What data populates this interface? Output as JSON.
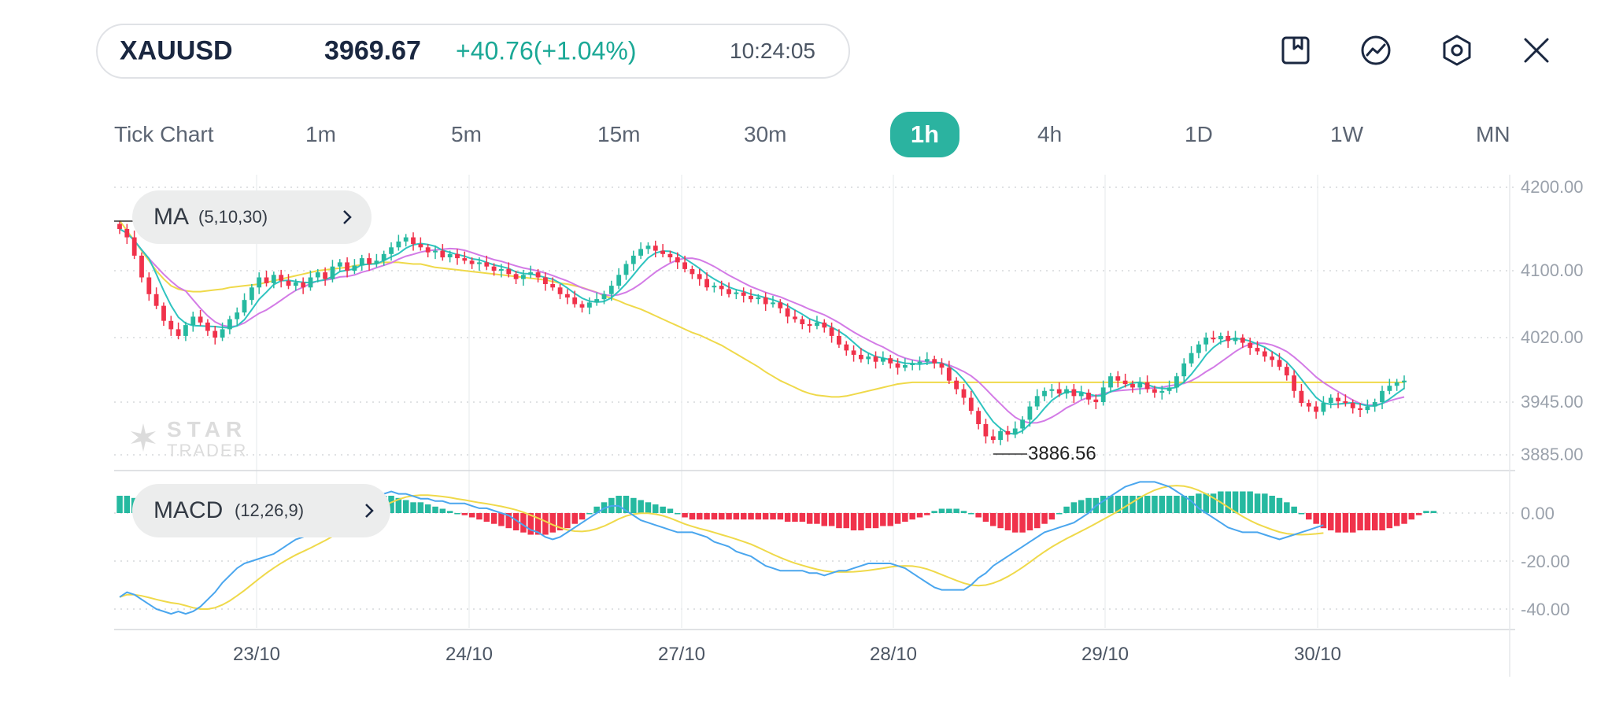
{
  "quote": {
    "symbol": "XAUUSD",
    "price": "3969.67",
    "change": "+40.76(+1.04%)",
    "time": "10:24:05",
    "price_color": "#1a2740",
    "change_color": "#1ba896"
  },
  "toolbar": {
    "icons": [
      "bookmark-icon",
      "chart-icon",
      "settings-icon",
      "close-icon"
    ]
  },
  "timeframes": {
    "items": [
      "Tick Chart",
      "1m",
      "5m",
      "15m",
      "30m",
      "1h",
      "4h",
      "1D",
      "1W",
      "MN"
    ],
    "active": "1h",
    "active_color": "#2bb3a0"
  },
  "indicators": {
    "ma": {
      "name": "MA",
      "params": "(5,10,30)"
    },
    "macd": {
      "name": "MACD",
      "params": "(12,26,9)"
    }
  },
  "watermark": {
    "line1": "STAR",
    "line2": "TRADER"
  },
  "chart_data": {
    "type": "candlestick",
    "x_tick_labels": [
      "23/10",
      "24/10",
      "27/10",
      "28/10",
      "29/10",
      "30/10"
    ],
    "price_axis_labels": [
      "4200.00",
      "4100.00",
      "4020.00",
      "3945.00",
      "3885.00"
    ],
    "macd_axis_labels": [
      "0.00",
      "-20.00",
      "-40.00"
    ],
    "low_marker": "3886.56",
    "grid": true,
    "colors": {
      "up": "#26b9a0",
      "down": "#f0324b",
      "ma5": "#2fc4c0",
      "ma10": "#d37be6",
      "ma30": "#efd94a",
      "dif": "#4aa6ee",
      "dea": "#efd94a"
    },
    "close": [
      4150,
      4140,
      4118,
      4092,
      4072,
      4058,
      4040,
      4030,
      4022,
      4035,
      4045,
      4038,
      4028,
      4020,
      4030,
      4042,
      4050,
      4065,
      4080,
      4092,
      4085,
      4095,
      4088,
      4082,
      4086,
      4080,
      4092,
      4098,
      4090,
      4105,
      4110,
      4100,
      4106,
      4115,
      4108,
      4112,
      4120,
      4128,
      4135,
      4140,
      4132,
      4128,
      4122,
      4124,
      4116,
      4120,
      4115,
      4112,
      4108,
      4110,
      4105,
      4100,
      4102,
      4096,
      4090,
      4095,
      4098,
      4092,
      4084,
      4080,
      4072,
      4068,
      4060,
      4056,
      4062,
      4066,
      4072,
      4082,
      4095,
      4108,
      4118,
      4126,
      4130,
      4124,
      4120,
      4116,
      4110,
      4102,
      4096,
      4090,
      4080,
      4082,
      4078,
      4072,
      4074,
      4070,
      4066,
      4068,
      4060,
      4062,
      4055,
      4045,
      4042,
      4036,
      4034,
      4038,
      4032,
      4022,
      4012,
      4005,
      4000,
      3995,
      3998,
      3992,
      3996,
      3990,
      3985,
      3988,
      3990,
      3992,
      3995,
      3990,
      3985,
      3970,
      3960,
      3950,
      3935,
      3920,
      3906,
      3902,
      3912,
      3908,
      3915,
      3925,
      3940,
      3952,
      3958,
      3960,
      3955,
      3960,
      3952,
      3956,
      3948,
      3945,
      3962,
      3975,
      3970,
      3966,
      3962,
      3968,
      3960,
      3956,
      3958,
      3962,
      3975,
      3990,
      4002,
      4012,
      4020,
      4018,
      4022,
      4016,
      4020,
      4014,
      4008,
      4004,
      3998,
      3994,
      3986,
      3976,
      3958,
      3944,
      3940,
      3934,
      3944,
      3950,
      3946,
      3944,
      3938,
      3936,
      3940,
      3945,
      3958,
      3964,
      3968,
      3970
    ],
    "ma30": [
      4160,
      4148,
      4136,
      4124,
      4112,
      4100,
      4090,
      4082,
      4078,
      4076,
      4075,
      4075,
      4076,
      4077,
      4078,
      4080,
      4081,
      4082,
      4083,
      4084,
      4086,
      4088,
      4090,
      4092,
      4094,
      4096,
      4098,
      4100,
      4101,
      4102,
      4103,
      4104,
      4106,
      4107,
      4108,
      4109,
      4110,
      4110,
      4110,
      4109,
      4108,
      4108,
      4106,
      4104,
      4103,
      4102,
      4101,
      4100,
      4099,
      4098,
      4097,
      4096,
      4095,
      4094,
      4093,
      4092,
      4091,
      4090,
      4089,
      4087,
      4085,
      4084,
      4082,
      4080,
      4077,
      4074,
      4070,
      4067,
      4064,
      4060,
      4057,
      4054,
      4050,
      4046,
      4042,
      4038,
      4034,
      4030,
      4026,
      4023,
      4019,
      4015,
      4011,
      4006,
      4001,
      3996,
      3991,
      3986,
      3980,
      3975,
      3970,
      3966,
      3962,
      3958,
      3955,
      3953,
      3952,
      3951,
      3951,
      3952,
      3954,
      3956,
      3958,
      3960,
      3962,
      3964,
      3966,
      3967,
      3968,
      3968,
      3968,
      3968,
      3968,
      3968,
      3968,
      3968,
      3968,
      3968,
      3968,
      3968,
      3968,
      3968,
      3968,
      3968,
      3968,
      3968,
      3968,
      3968,
      3968,
      3968,
      3968,
      3968,
      3968,
      3968,
      3968,
      3968,
      3968,
      3968,
      3968,
      3968,
      3968,
      3968,
      3968,
      3968,
      3968,
      3968,
      3968,
      3968,
      3968,
      3968,
      3968,
      3968,
      3968,
      3968,
      3968,
      3968,
      3968,
      3968,
      3968,
      3968,
      3968,
      3968,
      3968,
      3968,
      3968,
      3968,
      3968,
      3968,
      3968,
      3968,
      3968,
      3968,
      3968,
      3968,
      3968,
      3968
    ],
    "macd_hist": [
      8,
      8,
      7,
      6,
      5,
      3,
      2,
      1,
      0,
      -2,
      -3,
      -4,
      -3,
      -2,
      0,
      2,
      4,
      6,
      8,
      10,
      11,
      12,
      12,
      12,
      12,
      11,
      11,
      10,
      10,
      10,
      9,
      9,
      9,
      9,
      9,
      8,
      8,
      8,
      7,
      6,
      5,
      5,
      4,
      3,
      2,
      1,
      0,
      -1,
      -2,
      -3,
      -4,
      -5,
      -6,
      -7,
      -8,
      -9,
      -10,
      -10,
      -10,
      -9,
      -8,
      -7,
      -5,
      -3,
      0,
      3,
      5,
      7,
      8,
      8,
      7,
      6,
      5,
      4,
      3,
      2,
      0,
      -2,
      -3,
      -3,
      -3,
      -3,
      -3,
      -3,
      -3,
      -3,
      -3,
      -3,
      -3,
      -3,
      -3,
      -4,
      -4,
      -4,
      -5,
      -5,
      -6,
      -6,
      -7,
      -7,
      -8,
      -8,
      -7,
      -7,
      -6,
      -6,
      -5,
      -4,
      -3,
      -2,
      -1,
      1,
      2,
      2,
      2,
      1,
      0,
      -2,
      -4,
      -6,
      -7,
      -8,
      -9,
      -9,
      -8,
      -7,
      -5,
      -3,
      0,
      3,
      5,
      6,
      7,
      7,
      8,
      8,
      8,
      8,
      8,
      8,
      8,
      8,
      8,
      8,
      8,
      8,
      8,
      9,
      9,
      9,
      10,
      10,
      10,
      10,
      10,
      9,
      9,
      8,
      7,
      5,
      3,
      0,
      -3,
      -5,
      -7,
      -8,
      -9,
      -9,
      -9,
      -8,
      -8,
      -8,
      -8,
      -7,
      -6,
      -5,
      -3,
      -1,
      1,
      1
    ],
    "dif": [
      -35,
      -33,
      -34,
      -36,
      -38,
      -40,
      -41,
      -42,
      -41,
      -42,
      -41,
      -39,
      -36,
      -33,
      -29,
      -26,
      -23,
      -21,
      -20,
      -19,
      -18,
      -17,
      -15,
      -13,
      -11,
      -10,
      -8,
      -6,
      -5,
      -3,
      -1,
      2,
      4,
      6,
      7,
      8,
      8,
      9,
      8,
      8,
      7,
      6,
      6,
      5,
      5,
      4,
      4,
      4,
      3,
      2,
      2,
      1,
      0,
      -1,
      -3,
      -5,
      -7,
      -8,
      -10,
      -11,
      -10,
      -8,
      -6,
      -4,
      -2,
      0,
      2,
      3,
      3,
      1,
      -1,
      -3,
      -4,
      -5,
      -6,
      -7,
      -8,
      -8,
      -8,
      -9,
      -10,
      -12,
      -13,
      -14,
      -16,
      -17,
      -18,
      -20,
      -22,
      -23,
      -24,
      -24,
      -24,
      -24,
      -25,
      -25,
      -26,
      -25,
      -24,
      -24,
      -23,
      -22,
      -21,
      -21,
      -21,
      -21,
      -22,
      -23,
      -25,
      -27,
      -29,
      -31,
      -32,
      -32,
      -32,
      -32,
      -30,
      -27,
      -25,
      -22,
      -20,
      -18,
      -16,
      -14,
      -12,
      -10,
      -8,
      -7,
      -6,
      -5,
      -4,
      -2,
      0,
      3,
      5,
      7,
      9,
      11,
      12,
      13,
      13,
      13,
      12,
      11,
      9,
      7,
      5,
      2,
      0,
      -2,
      -4,
      -6,
      -7,
      -8,
      -8,
      -8,
      -9,
      -10,
      -11,
      -10,
      -9,
      -8,
      -7,
      -6,
      -5
    ]
  }
}
